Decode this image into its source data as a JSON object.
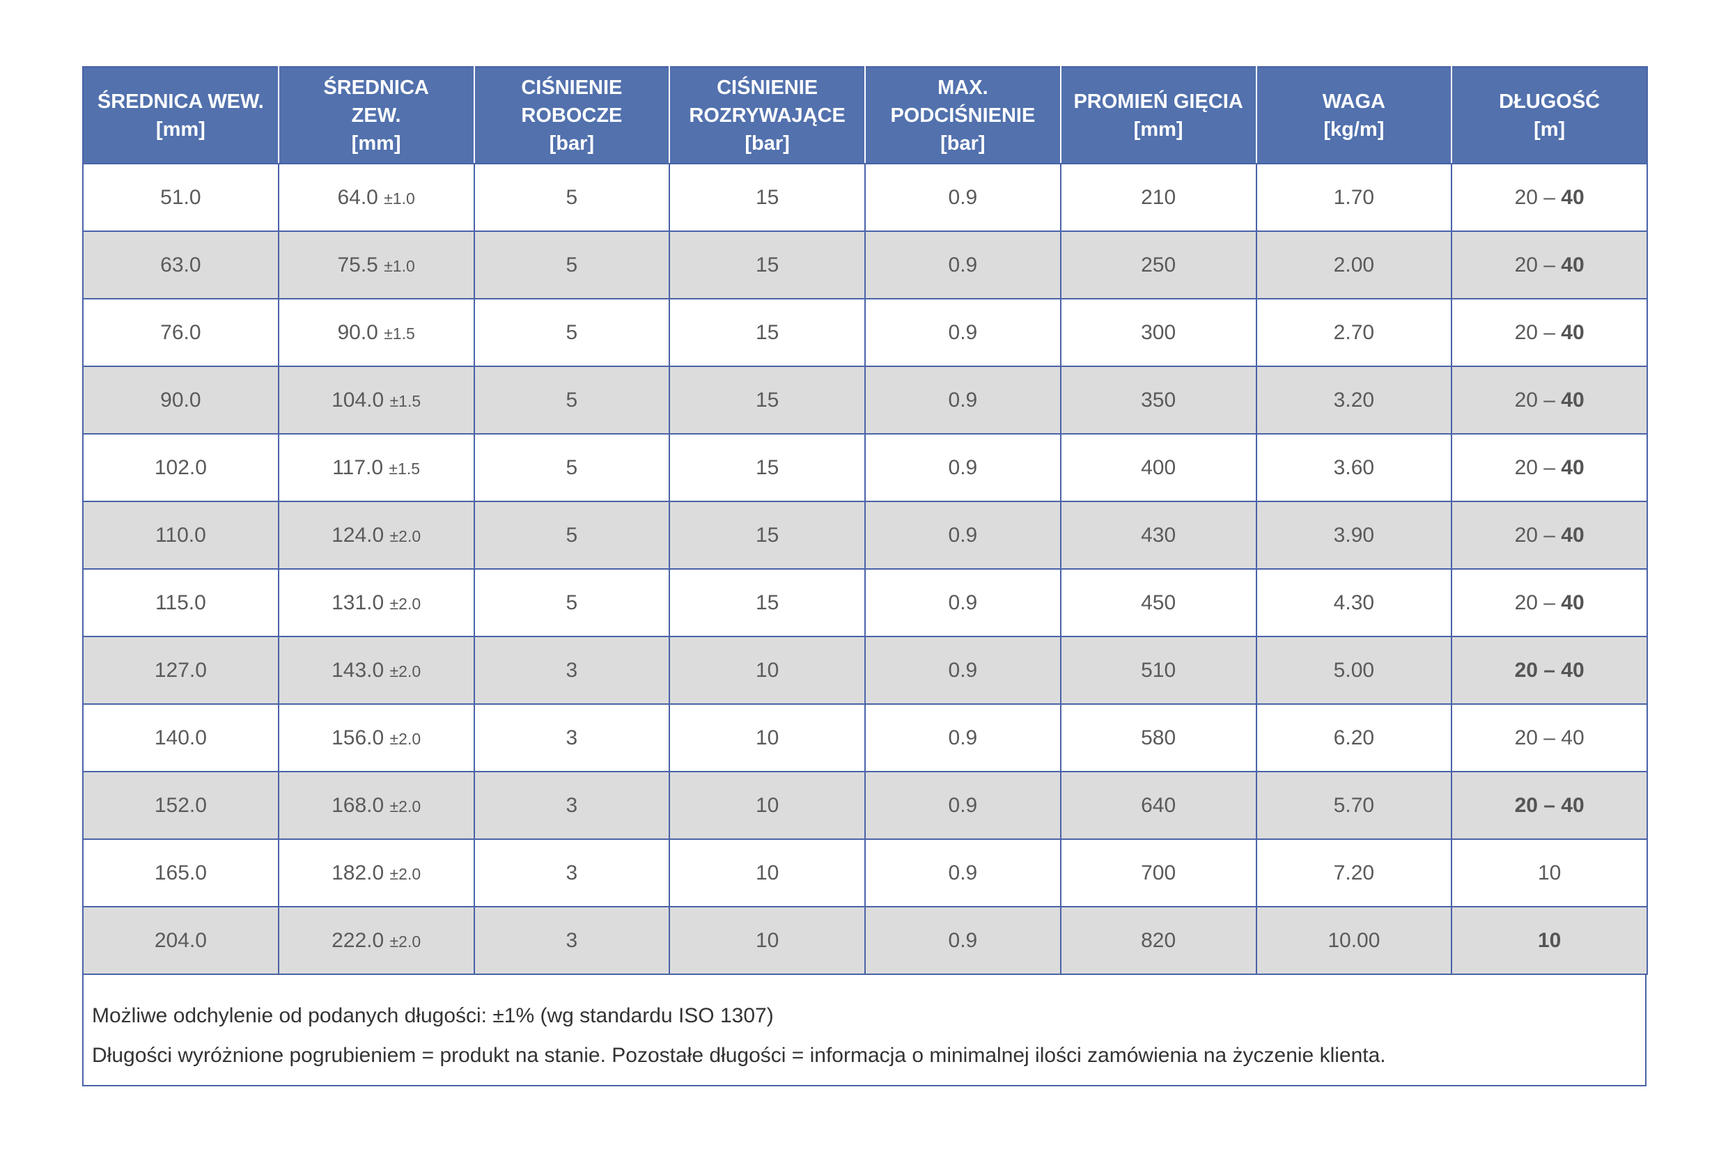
{
  "headers": [
    [
      "ŚREDNICA WEW.",
      "[mm]"
    ],
    [
      "ŚREDNICA",
      "ZEW.",
      "[mm]"
    ],
    [
      "CIŚNIENIE",
      "ROBOCZE",
      "[bar]"
    ],
    [
      "CIŚNIENIE",
      "ROZRYWAJĄCE",
      "[bar]"
    ],
    [
      "MAX.",
      "PODCIŚNIENIE",
      "[bar]"
    ],
    [
      "PROMIEŃ GIĘCIA",
      "[mm]"
    ],
    [
      "WAGA",
      "[kg/m]"
    ],
    [
      "DŁUGOŚĆ",
      "[m]"
    ]
  ],
  "rows": [
    {
      "id": "51.0",
      "od": "64.0",
      "tol": "±1.0",
      "wp": "5",
      "bp": "15",
      "vac": "0.9",
      "radius": "210",
      "weight": "1.70",
      "len_a": "20 – ",
      "len_b": "40",
      "len_style": "partial"
    },
    {
      "id": "63.0",
      "od": "75.5",
      "tol": "±1.0",
      "wp": "5",
      "bp": "15",
      "vac": "0.9",
      "radius": "250",
      "weight": "2.00",
      "len_a": "20 – ",
      "len_b": "40",
      "len_style": "partial"
    },
    {
      "id": "76.0",
      "od": "90.0",
      "tol": "±1.5",
      "wp": "5",
      "bp": "15",
      "vac": "0.9",
      "radius": "300",
      "weight": "2.70",
      "len_a": "20 – ",
      "len_b": "40",
      "len_style": "partial"
    },
    {
      "id": "90.0",
      "od": "104.0",
      "tol": "±1.5",
      "wp": "5",
      "bp": "15",
      "vac": "0.9",
      "radius": "350",
      "weight": "3.20",
      "len_a": "20 – ",
      "len_b": "40",
      "len_style": "partial"
    },
    {
      "id": "102.0",
      "od": "117.0",
      "tol": "±1.5",
      "wp": "5",
      "bp": "15",
      "vac": "0.9",
      "radius": "400",
      "weight": "3.60",
      "len_a": "20 – ",
      "len_b": "40",
      "len_style": "partial"
    },
    {
      "id": "110.0",
      "od": "124.0",
      "tol": "±2.0",
      "wp": "5",
      "bp": "15",
      "vac": "0.9",
      "radius": "430",
      "weight": "3.90",
      "len_a": "20 – ",
      "len_b": "40",
      "len_style": "partial"
    },
    {
      "id": "115.0",
      "od": "131.0",
      "tol": "±2.0",
      "wp": "5",
      "bp": "15",
      "vac": "0.9",
      "radius": "450",
      "weight": "4.30",
      "len_a": "20 – ",
      "len_b": "40",
      "len_style": "partial"
    },
    {
      "id": "127.0",
      "od": "143.0",
      "tol": "±2.0",
      "wp": "3",
      "bp": "10",
      "vac": "0.9",
      "radius": "510",
      "weight": "5.00",
      "len_a": "20 – 40",
      "len_b": "",
      "len_style": "bold"
    },
    {
      "id": "140.0",
      "od": "156.0",
      "tol": "±2.0",
      "wp": "3",
      "bp": "10",
      "vac": "0.9",
      "radius": "580",
      "weight": "6.20",
      "len_a": "20 – 40",
      "len_b": "",
      "len_style": "plain"
    },
    {
      "id": "152.0",
      "od": "168.0",
      "tol": "±2.0",
      "wp": "3",
      "bp": "10",
      "vac": "0.9",
      "radius": "640",
      "weight": "5.70",
      "len_a": "20 – 40",
      "len_b": "",
      "len_style": "bold"
    },
    {
      "id": "165.0",
      "od": "182.0",
      "tol": "±2.0",
      "wp": "3",
      "bp": "10",
      "vac": "0.9",
      "radius": "700",
      "weight": "7.20",
      "len_a": "10",
      "len_b": "",
      "len_style": "plain"
    },
    {
      "id": "204.0",
      "od": "222.0",
      "tol": "±2.0",
      "wp": "3",
      "bp": "10",
      "vac": "0.9",
      "radius": "820",
      "weight": "10.00",
      "len_a": "10",
      "len_b": "",
      "len_style": "bold"
    }
  ],
  "notes": {
    "line1": "Możliwe odchylenie od podanych długości: ±1% (wg standardu ISO 1307)",
    "line2": "Długości wyróżnione pogrubieniem = produkt na stanie. Pozostałe długości = informacja o minimalnej ilości zamówienia na życzenie klienta."
  },
  "colors": {
    "header_bg": "#5271ad",
    "border": "#4a63a8",
    "alt_row_bg": "#dcdcdc"
  }
}
